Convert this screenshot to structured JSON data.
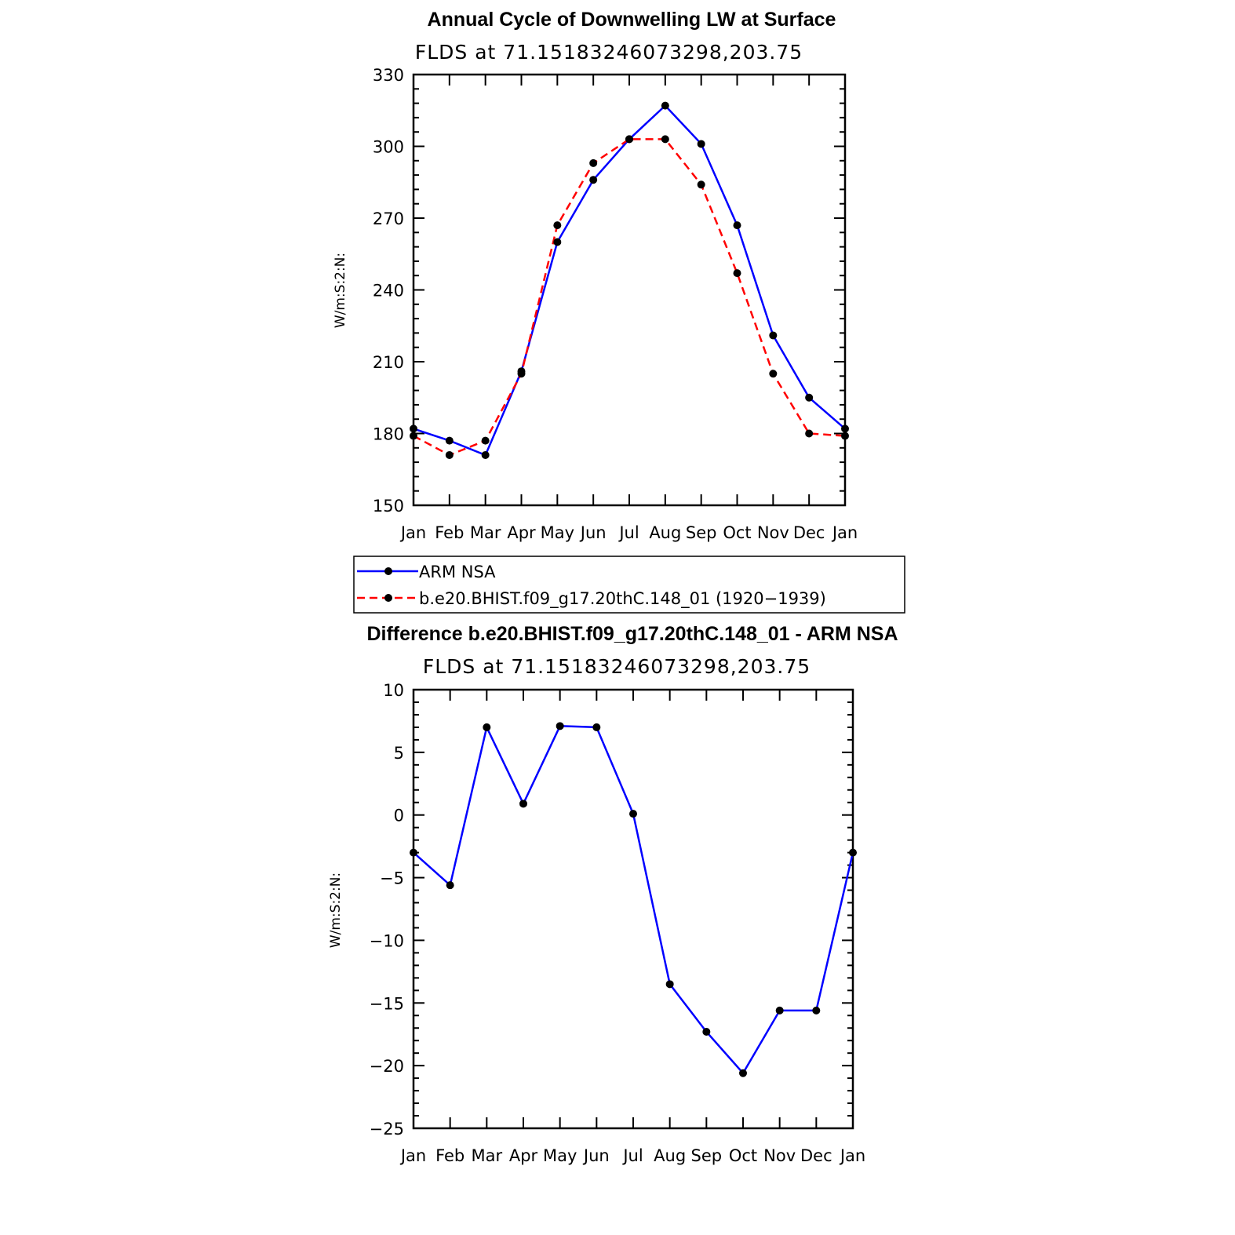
{
  "chart_data": [
    {
      "type": "line",
      "title": "Annual Cycle of Downwelling LW at Surface",
      "subtitle": "FLDS at 71.15183246073298,203.75",
      "ylabel": "W/m:S:2:N:",
      "xlabel": "",
      "ylim": [
        150,
        330
      ],
      "yticks": [
        150,
        180,
        210,
        240,
        270,
        300,
        330
      ],
      "categories": [
        "Jan",
        "Feb",
        "Mar",
        "Apr",
        "May",
        "Jun",
        "Jul",
        "Aug",
        "Sep",
        "Oct",
        "Nov",
        "Dec",
        "Jan"
      ],
      "series": [
        {
          "name": "ARM NSA",
          "color": "#0000ff",
          "dash": "solid",
          "values": [
            182,
            177,
            171,
            206,
            260,
            286,
            303,
            317,
            301,
            267,
            221,
            195,
            182
          ]
        },
        {
          "name": "b.e20.BHIST.f09_g17.20thC.148_01 (1920−1939)",
          "color": "#ff0000",
          "dash": "dashed",
          "values": [
            179,
            171,
            177,
            205,
            267,
            293,
            303,
            303,
            284,
            247,
            205,
            180,
            179
          ]
        }
      ],
      "legend": "below"
    },
    {
      "type": "line",
      "title": "Difference b.e20.BHIST.f09_g17.20thC.148_01 - ARM NSA",
      "subtitle": "FLDS at 71.15183246073298,203.75",
      "ylabel": "W/m:S:2:N:",
      "xlabel": "",
      "ylim": [
        -25,
        10
      ],
      "yticks": [
        -25,
        -20,
        -15,
        -10,
        -5,
        0,
        5,
        10
      ],
      "ytick_labels": [
        "−25",
        "−20",
        "−15",
        "−10",
        "−5",
        "0",
        "5",
        "10"
      ],
      "categories": [
        "Jan",
        "Feb",
        "Mar",
        "Apr",
        "May",
        "Jun",
        "Jul",
        "Aug",
        "Sep",
        "Oct",
        "Nov",
        "Dec",
        "Jan"
      ],
      "series": [
        {
          "name": "Difference",
          "color": "#0000ff",
          "dash": "solid",
          "values": [
            -3.0,
            -5.6,
            7.0,
            0.9,
            7.1,
            7.0,
            0.1,
            -13.5,
            -17.3,
            -20.6,
            -15.6,
            -15.6,
            -3.0
          ]
        }
      ]
    }
  ]
}
